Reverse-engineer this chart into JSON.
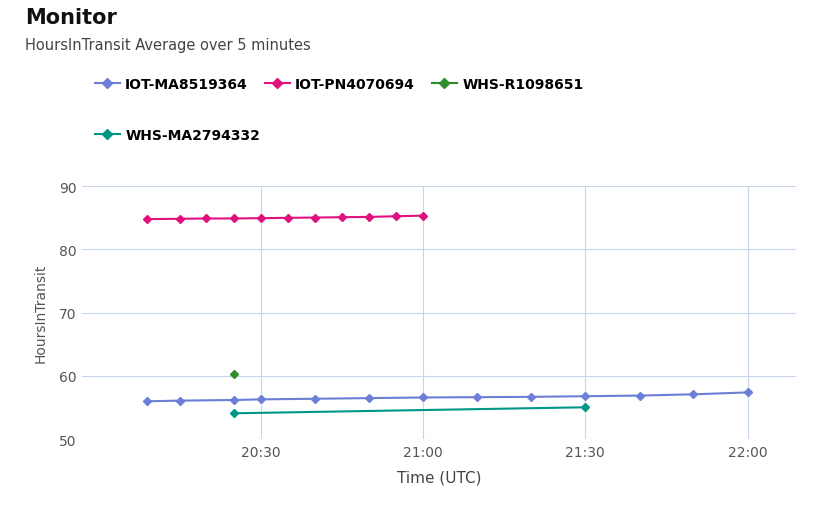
{
  "title": "Monitor",
  "subtitle": "HoursInTransit Average over 5 minutes",
  "xlabel": "Time (UTC)",
  "ylabel": "HoursInTransit",
  "ylim": [
    50,
    90
  ],
  "yticks": [
    50,
    60,
    70,
    80,
    90
  ],
  "background_color": "#ffffff",
  "plot_bg_color": "#ffffff",
  "grid_color": "#c8d4e8",
  "series": [
    {
      "label": "IOT-MA8519364",
      "color": "#6b7fd7",
      "marker": "D",
      "x": [
        20.15,
        20.25,
        20.417,
        20.5,
        20.667,
        20.833,
        21.0,
        21.167,
        21.333,
        21.5,
        21.667,
        21.833,
        22.0
      ],
      "y": [
        56.0,
        56.1,
        56.2,
        56.3,
        56.4,
        56.5,
        56.6,
        56.65,
        56.7,
        56.8,
        56.9,
        57.1,
        57.4
      ]
    },
    {
      "label": "IOT-PN4070694",
      "color": "#e0117f",
      "marker": "D",
      "x": [
        20.15,
        20.25,
        20.333,
        20.417,
        20.5,
        20.583,
        20.667,
        20.75,
        20.833,
        20.917,
        21.0
      ],
      "y": [
        84.8,
        84.85,
        84.9,
        84.9,
        84.95,
        85.0,
        85.05,
        85.1,
        85.15,
        85.25,
        85.35
      ]
    },
    {
      "label": "WHS-R1098651",
      "color": "#2e8b2e",
      "marker": "D",
      "x": [
        20.417
      ],
      "y": [
        60.3
      ]
    },
    {
      "label": "WHS-MA2794332",
      "color": "#009688",
      "marker": "D",
      "x": [
        20.417,
        21.5
      ],
      "y": [
        54.1,
        55.05
      ]
    }
  ],
  "xtick_labels": [
    "20:30",
    "21:00",
    "21:30",
    "22:00"
  ],
  "xtick_positions": [
    20.5,
    21.0,
    21.5,
    22.0
  ],
  "legend_row1": [
    "IOT-MA8519364",
    "IOT-PN4070694",
    "WHS-R1098651"
  ],
  "legend_row2": [
    "WHS-MA2794332"
  ],
  "legend_colors": {
    "IOT-MA8519364": "#6b7fd7",
    "IOT-PN4070694": "#e0117f",
    "WHS-R1098651": "#2e8b2e",
    "WHS-MA2794332": "#009688"
  }
}
